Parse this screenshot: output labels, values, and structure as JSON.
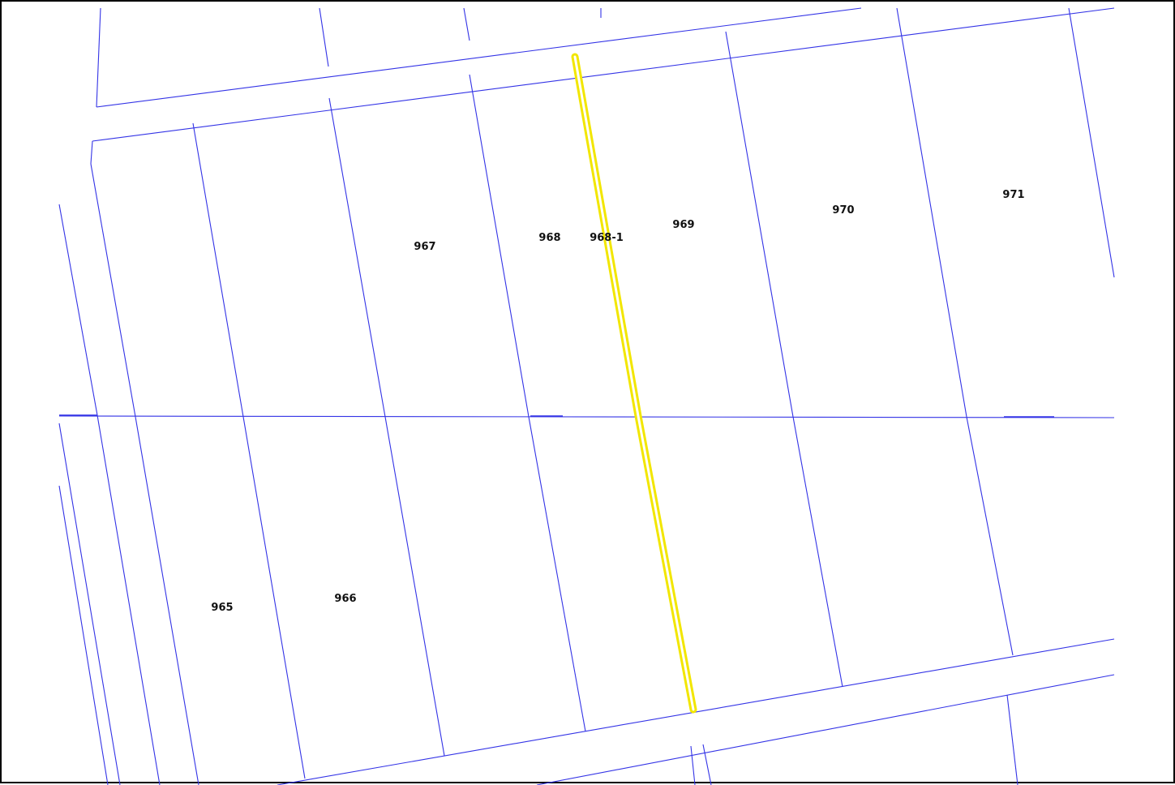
{
  "map": {
    "parcel_line_color": "#3333e6",
    "highlight_color": "#f2e600",
    "lots": [
      {
        "id": "965",
        "label": "965"
      },
      {
        "id": "966",
        "label": "966"
      },
      {
        "id": "967",
        "label": "967"
      },
      {
        "id": "968",
        "label": "968"
      },
      {
        "id": "968-1",
        "label": "968-1"
      },
      {
        "id": "969",
        "label": "969"
      },
      {
        "id": "970",
        "label": "970"
      },
      {
        "id": "971",
        "label": "971"
      }
    ]
  }
}
